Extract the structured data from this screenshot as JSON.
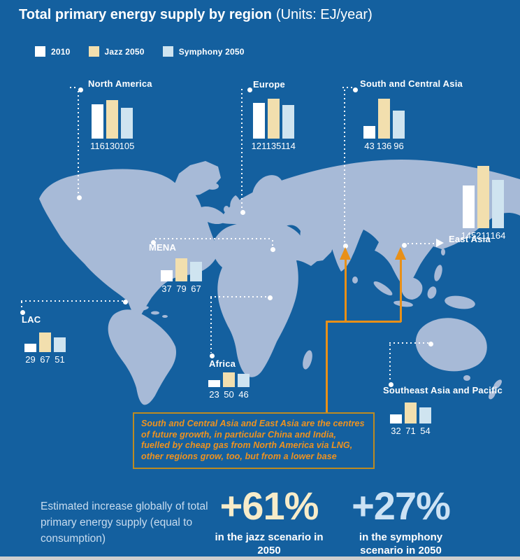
{
  "title": {
    "main": "Total primary energy supply by region",
    "units": "(Units: EJ/year)"
  },
  "legend": [
    {
      "label": "2010",
      "color": "#FFFFFF"
    },
    {
      "label": "Jazz 2050",
      "color": "#F2DFAE"
    },
    {
      "label": "Symphony 2050",
      "color": "#CFE4F0"
    }
  ],
  "chart_data": {
    "type": "bar",
    "units": "EJ/year",
    "series_names": [
      "2010",
      "Jazz 2050",
      "Symphony 2050"
    ],
    "series_colors": [
      "#FFFFFF",
      "#F2DFAE",
      "#CFE4F0"
    ],
    "regions": [
      {
        "name": "North America",
        "values": [
          116,
          130,
          105
        ]
      },
      {
        "name": "Europe",
        "values": [
          121,
          135,
          114
        ]
      },
      {
        "name": "South and Central Asia",
        "values": [
          43,
          136,
          96
        ]
      },
      {
        "name": "East Asia",
        "values": [
          145,
          211,
          164
        ]
      },
      {
        "name": "MENA",
        "values": [
          37,
          79,
          67
        ]
      },
      {
        "name": "LAC",
        "values": [
          29,
          67,
          51
        ]
      },
      {
        "name": "Africa",
        "values": [
          23,
          50,
          46
        ]
      },
      {
        "name": "Southeast Asia and Pacific",
        "values": [
          32,
          71,
          54
        ]
      }
    ]
  },
  "annotation": {
    "text": "South and Central Asia and East Asia are the centres of future growth, in particular China and India, fuelled by cheap gas from North America via LNG, other regions grow, too, but from a lower base"
  },
  "footer": {
    "caption": "Estimated increase globally of total primary energy supply (equal to consumption)",
    "stats": [
      {
        "value": "+61%",
        "label": "in the jazz scenario in 2050"
      },
      {
        "value": "+27%",
        "label": "in the symphony scenario in 2050"
      }
    ]
  },
  "colors": {
    "background": "#14609F",
    "land": "#A7BAD7",
    "accent_orange": "#E89018",
    "box_border": "#BD8B21",
    "box_text": "#F0931E",
    "stat_jazz": "#F7ECC9",
    "stat_symphony": "#CCE2F4"
  }
}
